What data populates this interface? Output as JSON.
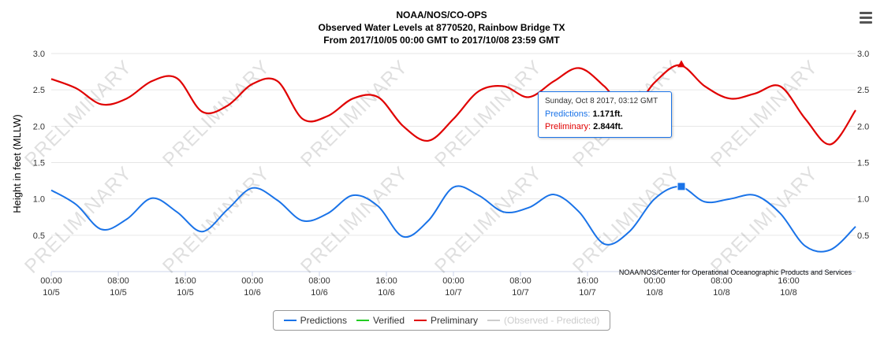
{
  "chart_data": {
    "type": "line",
    "title": "NOAA/NOS/CO-OPS",
    "subtitle": "Observed Water Levels at 8770520, Rainbow Bridge TX",
    "period": "From 2017/10/05 00:00 GMT to 2017/10/08 23:59 GMT",
    "ylabel": "Height in feet (MLLW)",
    "ylim": [
      0,
      3.0
    ],
    "yticks": [
      "0.5",
      "1.0",
      "1.5",
      "2.0",
      "2.5",
      "3.0"
    ],
    "xlim": [
      "2017-10-05 00:00",
      "2017-10-09 00:00"
    ],
    "xticks": [
      {
        "time": "00:00",
        "date": "10/5"
      },
      {
        "time": "08:00",
        "date": "10/5"
      },
      {
        "time": "16:00",
        "date": "10/5"
      },
      {
        "time": "00:00",
        "date": "10/6"
      },
      {
        "time": "08:00",
        "date": "10/6"
      },
      {
        "time": "16:00",
        "date": "10/6"
      },
      {
        "time": "00:00",
        "date": "10/7"
      },
      {
        "time": "08:00",
        "date": "10/7"
      },
      {
        "time": "16:00",
        "date": "10/7"
      },
      {
        "time": "00:00",
        "date": "10/8"
      },
      {
        "time": "08:00",
        "date": "10/8"
      },
      {
        "time": "16:00",
        "date": "10/8"
      }
    ],
    "grid": true,
    "legend_position": "bottom-center",
    "series": [
      {
        "name": "Predictions",
        "color": "#1a73e8",
        "unit": "hours from 2017-10-05 00:00",
        "x": [
          0,
          3,
          6,
          9,
          12,
          15,
          18,
          21,
          24,
          27,
          30,
          33,
          36,
          39,
          42,
          45,
          48,
          51,
          54,
          57,
          60,
          63,
          66,
          69,
          72,
          75,
          78,
          81,
          84,
          87,
          90,
          93,
          96
        ],
        "values": [
          1.12,
          0.92,
          0.58,
          0.72,
          1.01,
          0.82,
          0.55,
          0.85,
          1.15,
          0.98,
          0.7,
          0.8,
          1.05,
          0.9,
          0.48,
          0.7,
          1.16,
          1.05,
          0.82,
          0.88,
          1.06,
          0.82,
          0.38,
          0.55,
          1.0,
          1.17,
          0.96,
          1.0,
          1.05,
          0.8,
          0.35,
          0.3,
          0.62
        ]
      },
      {
        "name": "Verified",
        "color": "#22cc22",
        "x": [],
        "values": []
      },
      {
        "name": "Preliminary",
        "color": "#e00000",
        "unit": "hours from 2017-10-05 00:00",
        "x": [
          0,
          3,
          6,
          9,
          12,
          15,
          18,
          21,
          24,
          27,
          30,
          33,
          36,
          39,
          42,
          45,
          48,
          51,
          54,
          57,
          60,
          63,
          66,
          69,
          72,
          75,
          78,
          81,
          84,
          87,
          90,
          93,
          96
        ],
        "values": [
          2.65,
          2.52,
          2.3,
          2.38,
          2.62,
          2.66,
          2.2,
          2.28,
          2.58,
          2.62,
          2.1,
          2.14,
          2.38,
          2.4,
          2.0,
          1.8,
          2.1,
          2.48,
          2.55,
          2.4,
          2.62,
          2.8,
          2.55,
          2.2,
          2.6,
          2.84,
          2.55,
          2.38,
          2.45,
          2.55,
          2.1,
          1.75,
          2.22
        ]
      },
      {
        "name": "(Observed - Predicted)",
        "color": "#cccccc",
        "x": [],
        "values": []
      }
    ],
    "tooltip": {
      "title": "Sunday, Oct 8 2017, 03:12 GMT",
      "hour": 75.2,
      "predictions_label": "Predictions:",
      "predictions_value": "1.171ft.",
      "predictions_y": 1.171,
      "preliminary_label": "Preliminary:",
      "preliminary_value": "2.844ft.",
      "preliminary_y": 2.844
    },
    "watermark": "PRELIMINARY",
    "credit": "NOAA/NOS/Center for Operational Oceanographic Products and Services"
  }
}
